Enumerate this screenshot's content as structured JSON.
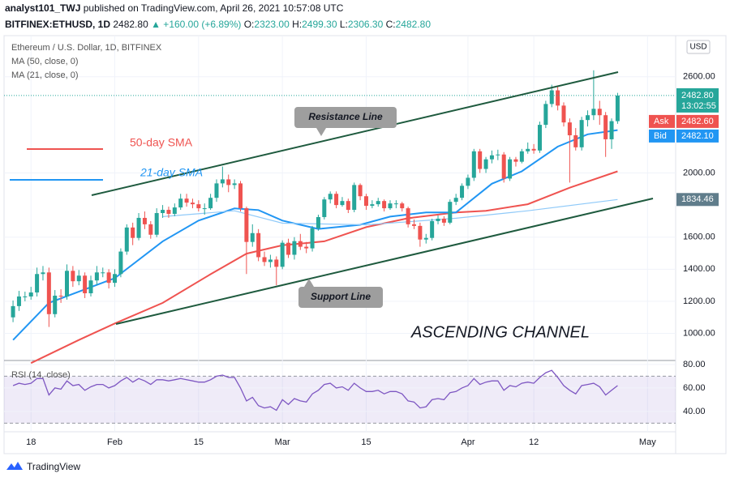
{
  "header": {
    "author": "analyst101_TWJ",
    "published": "published on TradingView.com, April 26, 2021 10:57:08 UTC",
    "symbol": "BITFINEX:ETHUSD, 1D",
    "last": "2482.80",
    "change": "▲ +160.00 (+6.89%)",
    "o_label": "O:",
    "o": "2323.00",
    "h_label": "H:",
    "h": "2499.30",
    "l_label": "L:",
    "l": "2306.30",
    "c_label": "C:",
    "c": "2482.80"
  },
  "footer": {
    "brand": "TradingView"
  },
  "chart_data": {
    "type": "candlestick",
    "title": "Ethereum / U.S. Dollar, 1D, BITFINEX",
    "up_color": "#26a69a",
    "down_color": "#ef5350",
    "open": [
      1100,
      1170,
      1230,
      1230,
      1255,
      1370,
      1380,
      1120,
      1235,
      1230,
      1390,
      1325,
      1360,
      1250,
      1330,
      1380,
      1380,
      1315,
      1370,
      1510,
      1660,
      1595,
      1720,
      1680,
      1615,
      1750,
      1770,
      1745,
      1785,
      1840,
      1815,
      1805,
      1780,
      1780,
      1845,
      1935,
      1960,
      1925,
      1935,
      1780,
      1570,
      1625,
      1475,
      1445,
      1460,
      1415,
      1565,
      1490,
      1575,
      1540,
      1530,
      1655,
      1725,
      1835,
      1870,
      1800,
      1825,
      1770,
      1925,
      1855,
      1795,
      1805,
      1825,
      1780,
      1810,
      1810,
      1780,
      1680,
      1670,
      1585,
      1595,
      1700,
      1715,
      1690,
      1820,
      1845,
      1920,
      1970,
      2135,
      2025,
      2085,
      2110,
      2115,
      1965,
      2085,
      2070,
      2135,
      2150,
      2140,
      2300,
      2430,
      2515,
      2420,
      2315,
      2235,
      2160,
      2330,
      2360,
      2400,
      2360,
      2210,
      2323
    ],
    "high": [
      1205,
      1265,
      1260,
      1290,
      1410,
      1420,
      1410,
      1270,
      1275,
      1430,
      1420,
      1395,
      1380,
      1360,
      1420,
      1410,
      1400,
      1400,
      1530,
      1680,
      1690,
      1750,
      1760,
      1700,
      1780,
      1800,
      1790,
      1810,
      1870,
      1870,
      1840,
      1830,
      1810,
      1870,
      1960,
      2040,
      1990,
      1960,
      1950,
      1790,
      1680,
      1650,
      1510,
      1490,
      1480,
      1580,
      1590,
      1600,
      1620,
      1570,
      1670,
      1740,
      1850,
      1885,
      1885,
      1850,
      1840,
      1940,
      1935,
      1870,
      1830,
      1845,
      1835,
      1830,
      1830,
      1820,
      1790,
      1710,
      1690,
      1620,
      1715,
      1735,
      1730,
      1835,
      1870,
      1935,
      1990,
      2150,
      2150,
      2100,
      2140,
      2145,
      2130,
      2100,
      2100,
      2150,
      2190,
      2180,
      2320,
      2450,
      2550,
      2540,
      2440,
      2340,
      2280,
      2350,
      2390,
      2640,
      2450,
      2380,
      2340,
      2499.3
    ],
    "low": [
      1070,
      1140,
      1200,
      1210,
      1230,
      1330,
      1040,
      1100,
      1190,
      1210,
      1290,
      1300,
      1220,
      1230,
      1300,
      1350,
      1280,
      1290,
      1350,
      1490,
      1550,
      1580,
      1650,
      1590,
      1600,
      1720,
      1720,
      1730,
      1770,
      1790,
      1780,
      1760,
      1740,
      1770,
      1820,
      1910,
      1880,
      1900,
      1760,
      1370,
      1540,
      1450,
      1420,
      1410,
      1300,
      1400,
      1470,
      1460,
      1520,
      1500,
      1510,
      1640,
      1710,
      1810,
      1780,
      1790,
      1750,
      1755,
      1830,
      1770,
      1780,
      1790,
      1760,
      1770,
      1780,
      1760,
      1660,
      1650,
      1540,
      1560,
      1580,
      1680,
      1670,
      1680,
      1800,
      1830,
      1900,
      1950,
      2000,
      2000,
      2060,
      2080,
      1940,
      1950,
      2040,
      2060,
      2120,
      2120,
      2125,
      2280,
      2410,
      2390,
      2290,
      1940,
      2140,
      2140,
      2290,
      2330,
      2300,
      2100,
      2150,
      2306.3
    ],
    "close": [
      1170,
      1230,
      1230,
      1255,
      1370,
      1380,
      1120,
      1235,
      1230,
      1390,
      1325,
      1360,
      1250,
      1330,
      1380,
      1380,
      1315,
      1370,
      1510,
      1660,
      1595,
      1720,
      1680,
      1615,
      1750,
      1770,
      1745,
      1785,
      1840,
      1815,
      1805,
      1780,
      1780,
      1845,
      1935,
      1960,
      1925,
      1935,
      1780,
      1570,
      1625,
      1475,
      1445,
      1460,
      1415,
      1565,
      1490,
      1575,
      1540,
      1530,
      1655,
      1725,
      1835,
      1870,
      1800,
      1825,
      1770,
      1925,
      1855,
      1795,
      1805,
      1825,
      1780,
      1810,
      1810,
      1780,
      1680,
      1670,
      1585,
      1595,
      1700,
      1715,
      1690,
      1820,
      1845,
      1920,
      1970,
      2135,
      2025,
      2085,
      2110,
      2115,
      1965,
      2085,
      2070,
      2135,
      2150,
      2140,
      2300,
      2430,
      2515,
      2420,
      2315,
      2235,
      2160,
      2330,
      2360,
      2400,
      2360,
      2210,
      2323,
      2482.8
    ],
    "series": [
      {
        "name": "MA (50, close, 0)",
        "color": "#ef5350",
        "x": [
          3,
          11,
          17,
          25,
          33,
          39,
          45,
          52,
          59,
          66,
          74,
          79,
          86,
          93,
          101
        ],
        "values": [
          815,
          959,
          1062,
          1190,
          1369,
          1497,
          1549,
          1574,
          1662,
          1718,
          1754,
          1764,
          1805,
          1908,
          2010
        ]
      },
      {
        "name": "MA (21, close, 0)",
        "color": "#2196f3",
        "x": [
          0,
          6,
          17,
          25,
          31,
          37,
          41,
          45,
          51,
          58,
          63,
          69,
          74,
          80,
          85,
          91,
          96,
          101
        ],
        "values": [
          959,
          1190,
          1344,
          1574,
          1703,
          1779,
          1769,
          1703,
          1651,
          1677,
          1728,
          1754,
          1754,
          1933,
          2010,
          2164,
          2241,
          2267
        ]
      },
      {
        "color": "#90caf9",
        "x": [
          25,
          37,
          45,
          59,
          74,
          86,
          101
        ],
        "values": [
          1728,
          1764,
          1687,
          1677,
          1718,
          1764,
          1834.46
        ]
      }
    ],
    "xlim": [
      -1.5,
      110.7
    ],
    "xticks": [
      {
        "value": 3,
        "label": "18"
      },
      {
        "value": 17,
        "label": "Feb"
      },
      {
        "value": 31,
        "label": "15"
      },
      {
        "value": 45,
        "label": "Mar"
      },
      {
        "value": 59,
        "label": "15"
      },
      {
        "value": 76,
        "label": "Apr"
      },
      {
        "value": 87,
        "label": "12"
      },
      {
        "value": 106,
        "label": "May"
      }
    ],
    "ylim": [
      831,
      2856
    ],
    "yticks": [
      {
        "value": 1000,
        "label": "1000.00"
      },
      {
        "value": 1200,
        "label": "1200.00"
      },
      {
        "value": 1400,
        "label": "1400.00"
      },
      {
        "value": 1600,
        "label": "1600.00"
      },
      {
        "value": 2000,
        "label": "2000.00"
      },
      {
        "value": 2600,
        "label": "2600.00"
      }
    ],
    "currency": "USD",
    "last_price": {
      "value": 2482.8,
      "label": "2482.80"
    },
    "countdown": "13:02:55",
    "ask": {
      "name": "Ask",
      "value": 2482.6,
      "label": "2482.60"
    },
    "bid": {
      "name": "Bid",
      "value": 2482.1,
      "label": "2482.10"
    },
    "ma_label": {
      "value": 1834.46,
      "label": "1834.46"
    },
    "annotations": {
      "resistance": "Resistance Line",
      "support": "Support Line",
      "pattern": "ASCENDING CHANNEL",
      "sma50": "50-day SMA",
      "sma21": "21-day SMA"
    },
    "rsi": {
      "name": "RSI (14, close)",
      "color": "#7e57c2",
      "band": [
        30,
        70
      ],
      "ylim": [
        22.7,
        83.4
      ],
      "yticks": [
        {
          "value": 40,
          "label": "40.00"
        },
        {
          "value": 60,
          "label": "60.00"
        },
        {
          "value": 80,
          "label": "80.00"
        }
      ],
      "values": [
        62,
        64,
        63,
        64,
        68,
        68,
        54,
        60,
        59,
        66,
        62,
        63,
        58,
        61,
        63,
        63,
        60,
        62,
        66,
        69,
        65,
        68,
        66,
        63,
        67,
        67,
        66,
        67,
        68,
        67,
        66,
        65,
        65,
        67,
        70,
        71,
        69,
        69,
        60,
        49,
        52,
        45,
        43,
        44,
        41,
        50,
        46,
        51,
        49,
        48,
        55,
        58,
        63,
        64,
        60,
        61,
        58,
        64,
        60,
        57,
        57,
        58,
        55,
        57,
        57,
        55,
        49,
        48,
        43,
        44,
        50,
        51,
        50,
        56,
        57,
        60,
        62,
        68,
        63,
        65,
        66,
        66,
        58,
        62,
        61,
        64,
        65,
        64,
        69,
        73,
        75,
        69,
        62,
        58,
        55,
        62,
        63,
        64,
        61,
        54,
        58,
        62
      ]
    }
  }
}
